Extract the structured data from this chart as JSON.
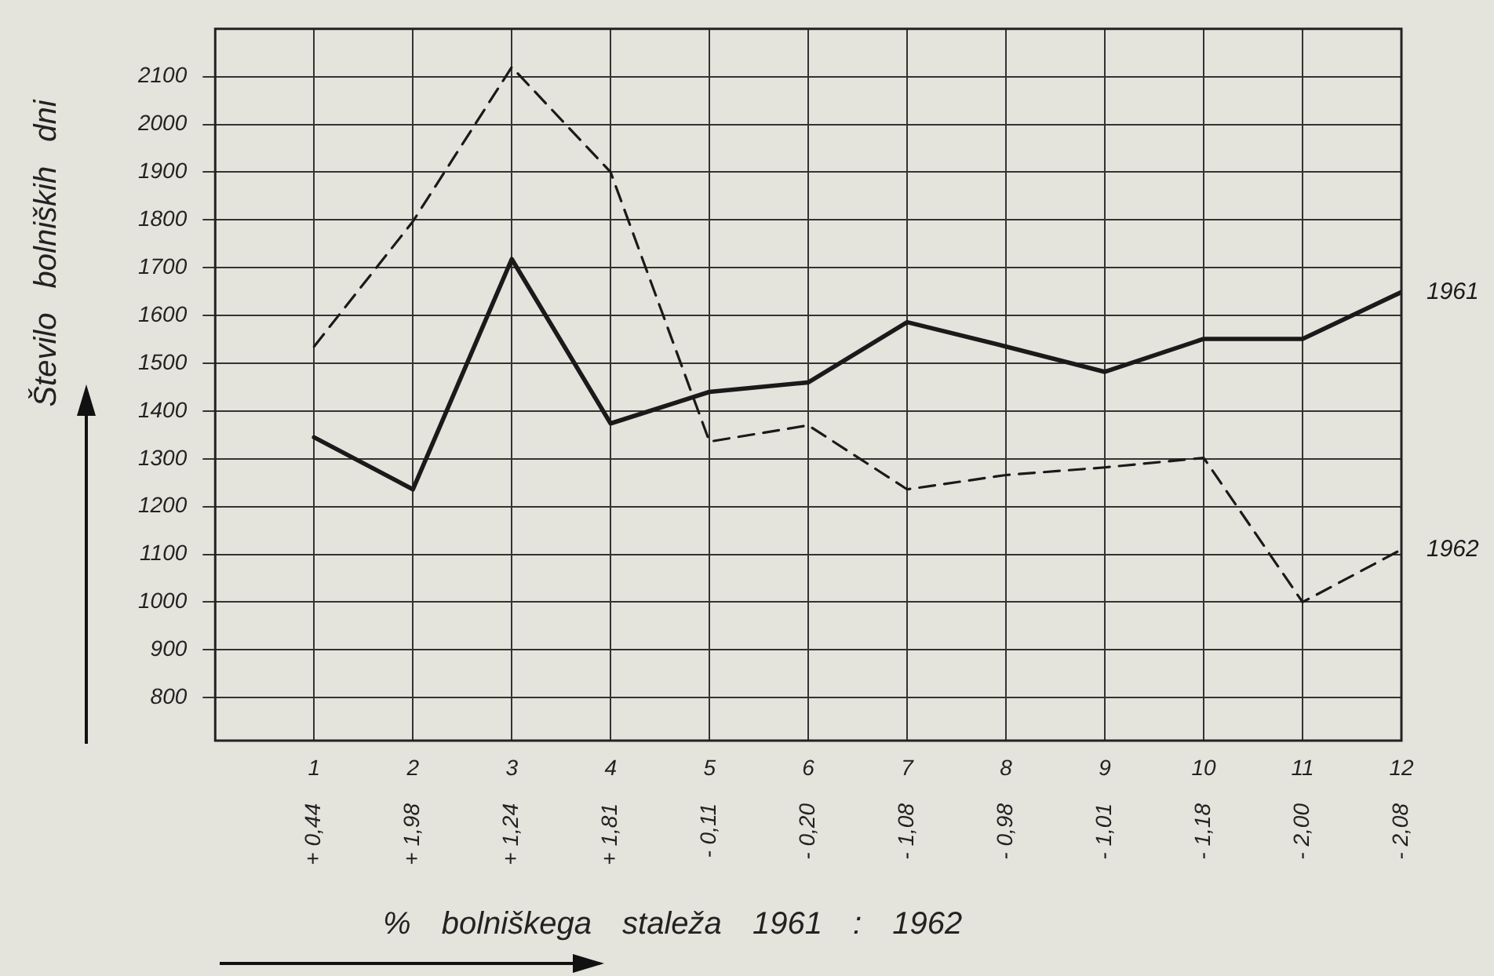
{
  "chart_data": {
    "type": "line",
    "xlabel": "% bolniškega staleža 1961 : 1962",
    "ylabel": "Število bolniških dni",
    "categories": [
      "1\n+ 0,44",
      "2\n+ 1,98",
      "3\n+ 1,24",
      "4\n+ 1,81",
      "5\n- 0,11",
      "6\n- 0,20",
      "7\n- 1,08",
      "8\n- 0,98",
      "9\n- 1,01",
      "10\n- 1,18",
      "11\n- 2,00",
      "12\n- 2,08"
    ],
    "series": [
      {
        "name": "1961",
        "color": "#1a1a1a",
        "line_style": "solid",
        "values": [
          1345,
          1236,
          1718,
          1374,
          1440,
          1460,
          1586,
          1535,
          1482,
          1551,
          1551,
          1649
        ]
      },
      {
        "name": "1962",
        "color": "#1a1a1a",
        "line_style": "dashed",
        "values": [
          1535,
          1797,
          2120,
          1900,
          1336,
          1370,
          1236,
          1266,
          1282,
          1302,
          1000,
          1110
        ]
      }
    ],
    "ylim": [
      710,
      2200
    ],
    "yticks": [
      800,
      900,
      1000,
      1100,
      1200,
      1300,
      1400,
      1500,
      1600,
      1700,
      1800,
      1900,
      2000,
      2100
    ],
    "grid": true,
    "marker": "none"
  }
}
